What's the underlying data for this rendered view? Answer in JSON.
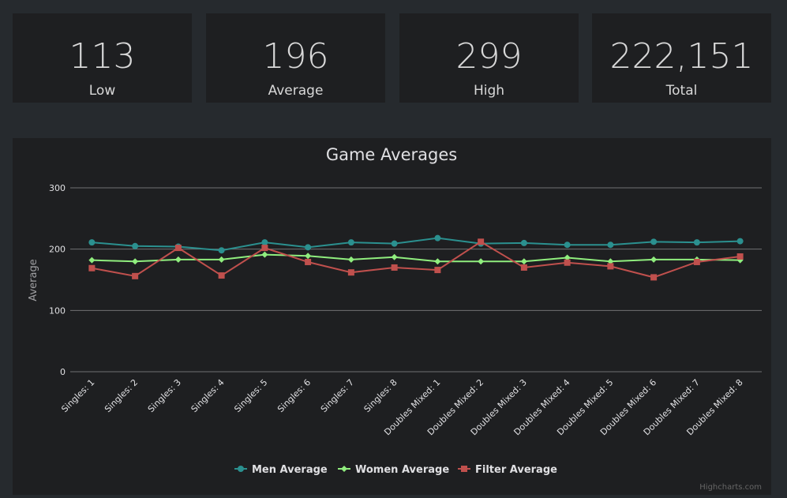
{
  "stats": [
    {
      "value": "113",
      "label": "Low"
    },
    {
      "value": "196",
      "label": "Average"
    },
    {
      "value": "299",
      "label": "High"
    },
    {
      "value": "222,151",
      "label": "Total"
    }
  ],
  "credit": "Highcharts.com",
  "chart_data": {
    "type": "line",
    "title": "Game Averages",
    "xlabel": "",
    "ylabel": "Average",
    "ylim": [
      0,
      300
    ],
    "yticks": [
      0,
      100,
      200,
      300
    ],
    "grid": true,
    "legend_position": "bottom-center",
    "categories": [
      "Singles: 1",
      "Singles: 2",
      "Singles: 3",
      "Singles: 4",
      "Singles: 5",
      "Singles: 6",
      "Singles: 7",
      "Singles: 8",
      "Doubles Mixed: 1",
      "Doubles Mixed: 2",
      "Doubles Mixed: 3",
      "Doubles Mixed: 4",
      "Doubles Mixed: 5",
      "Doubles Mixed: 6",
      "Doubles Mixed: 7",
      "Doubles Mixed: 8"
    ],
    "series": [
      {
        "name": "Men Average",
        "color": "#2b908f",
        "marker": "circle",
        "values": [
          211,
          205,
          204,
          198,
          211,
          203,
          211,
          209,
          218,
          209,
          210,
          207,
          207,
          212,
          211,
          213
        ]
      },
      {
        "name": "Women Average",
        "color": "#90ee7e",
        "marker": "diamond",
        "values": [
          182,
          180,
          183,
          183,
          191,
          189,
          183,
          187,
          180,
          180,
          180,
          186,
          180,
          183,
          183,
          182
        ]
      },
      {
        "name": "Filter Average",
        "color": "#c0504d",
        "marker": "square",
        "values": [
          169,
          156,
          202,
          157,
          202,
          179,
          162,
          170,
          166,
          212,
          170,
          178,
          172,
          154,
          179,
          188
        ]
      }
    ]
  }
}
